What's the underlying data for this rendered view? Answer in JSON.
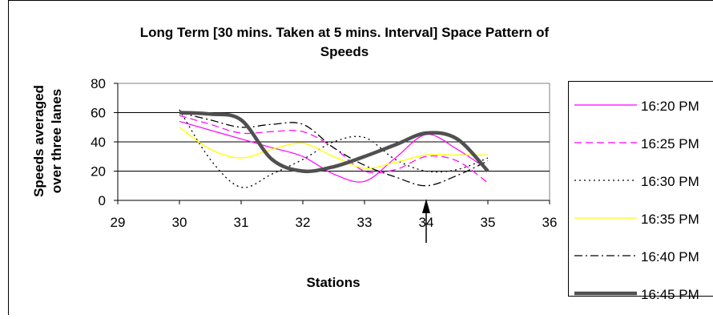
{
  "chart_data": {
    "type": "line",
    "title_lines": [
      "Long Term [30 mins. Taken at 5 mins. Interval] Space Pattern of",
      "Speeds"
    ],
    "xlabel": "Stations",
    "ylabel_lines": [
      "Speeds averaged",
      "over three lanes"
    ],
    "xlim": [
      29,
      36
    ],
    "ylim": [
      0,
      80
    ],
    "x_ticks": [
      "29",
      "30",
      "31",
      "32",
      "33",
      "34",
      "35",
      "36"
    ],
    "y_ticks": [
      "0",
      "20",
      "40",
      "60",
      "80"
    ],
    "grid": "horizontal",
    "legend_position": "right",
    "annotation": {
      "type": "arrow",
      "x": 34,
      "pointing": "up"
    },
    "series": [
      {
        "name": "16:20 PM",
        "color": "#ff00ff",
        "dash": "solid",
        "width": 1.2,
        "x": [
          30,
          30.5,
          31,
          31.5,
          32,
          32.5,
          33,
          33.5,
          34,
          34.5,
          35
        ],
        "y": [
          54,
          48,
          42,
          36,
          30,
          18,
          13,
          29,
          45,
          35,
          21
        ]
      },
      {
        "name": "16:25 PM",
        "color": "#ff00ff",
        "dash": "dash",
        "width": 1.2,
        "x": [
          30,
          30.5,
          31,
          31.5,
          32,
          32.5,
          33,
          33.5,
          34,
          34.5,
          35
        ],
        "y": [
          58,
          52,
          46,
          47,
          47,
          36,
          20,
          21,
          30,
          27,
          12
        ]
      },
      {
        "name": "16:30 PM",
        "color": "#000000",
        "dash": "dot",
        "width": 1.3,
        "x": [
          30,
          30.5,
          31,
          31.5,
          32,
          32.5,
          33,
          33.5,
          34,
          34.5,
          35
        ],
        "y": [
          62,
          28,
          9,
          18,
          28,
          40,
          43,
          28,
          20,
          21,
          29
        ]
      },
      {
        "name": "16:35 PM",
        "color": "#ffff00",
        "dash": "solid",
        "width": 1.3,
        "x": [
          30,
          30.5,
          31,
          31.5,
          32,
          32.5,
          33,
          33.5,
          34,
          34.5,
          35
        ],
        "y": [
          50,
          35,
          29,
          35,
          39,
          30,
          22,
          26,
          31,
          31,
          31
        ]
      },
      {
        "name": "16:40 PM",
        "color": "#000000",
        "dash": "dashdot",
        "width": 1.3,
        "x": [
          30,
          30.5,
          31,
          31.5,
          32,
          32.5,
          33,
          33.5,
          34,
          34.5,
          35
        ],
        "y": [
          60,
          55,
          50,
          52,
          52,
          36,
          24,
          16,
          10,
          17,
          27
        ]
      },
      {
        "name": "16:45 PM",
        "color": "#505050",
        "dash": "solid",
        "width": 4.5,
        "x": [
          30,
          30.5,
          31,
          31.5,
          32,
          32.5,
          33,
          33.5,
          34,
          34.5,
          35
        ],
        "y": [
          60,
          59,
          55,
          28,
          20,
          23,
          30,
          38,
          46,
          42,
          20
        ]
      }
    ]
  }
}
